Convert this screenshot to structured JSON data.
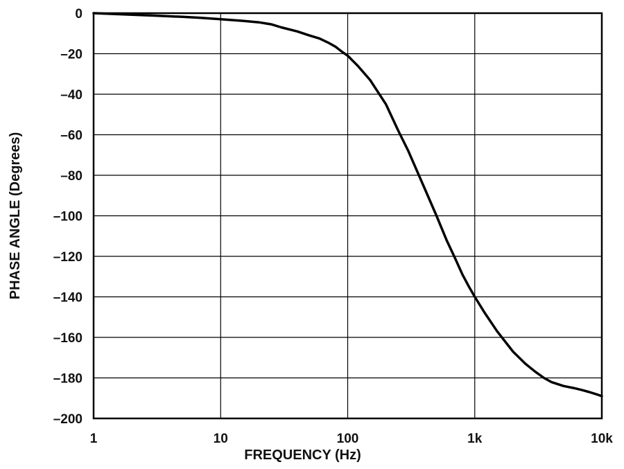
{
  "chart_data": {
    "type": "line",
    "title": "",
    "xlabel": "FREQUENCY (Hz)",
    "ylabel": "PHASE ANGLE (Degrees)",
    "x_scale": "log",
    "xlim": [
      1,
      10000
    ],
    "ylim": [
      -200,
      0
    ],
    "grid": true,
    "legend": "none",
    "x_ticks": [
      {
        "value": 1,
        "label": "1"
      },
      {
        "value": 10,
        "label": "10"
      },
      {
        "value": 100,
        "label": "100"
      },
      {
        "value": 1000,
        "label": "1k"
      },
      {
        "value": 10000,
        "label": "10k"
      }
    ],
    "y_ticks": [
      {
        "value": 0,
        "label": "0"
      },
      {
        "value": -20,
        "label": "–20"
      },
      {
        "value": -40,
        "label": "–40"
      },
      {
        "value": -60,
        "label": "–60"
      },
      {
        "value": -80,
        "label": "–80"
      },
      {
        "value": -100,
        "label": "–100"
      },
      {
        "value": -120,
        "label": "–120"
      },
      {
        "value": -140,
        "label": "–140"
      },
      {
        "value": -160,
        "label": "–160"
      },
      {
        "value": -180,
        "label": "–180"
      },
      {
        "value": -200,
        "label": "–200"
      }
    ],
    "series": [
      {
        "color": "#000000",
        "x": [
          1,
          2,
          3,
          5,
          7,
          10,
          15,
          20,
          25,
          30,
          40,
          50,
          60,
          70,
          80,
          90,
          100,
          120,
          150,
          200,
          250,
          300,
          400,
          500,
          600,
          700,
          800,
          900,
          1000,
          1200,
          1500,
          2000,
          2500,
          3000,
          3500,
          4000,
          5000,
          6000,
          7000,
          8000,
          9000,
          10000
        ],
        "y": [
          0,
          -0.8,
          -1.2,
          -1.8,
          -2.3,
          -3,
          -3.8,
          -4.5,
          -5.5,
          -7,
          -9,
          -11,
          -12.5,
          -14.5,
          -16.5,
          -19,
          -21,
          -26,
          -33,
          -45,
          -58,
          -68,
          -86,
          -100,
          -112,
          -121,
          -129,
          -135,
          -140,
          -148,
          -157,
          -167,
          -173,
          -177,
          -180,
          -182,
          -184,
          -185,
          -186,
          -187,
          -188,
          -189
        ]
      }
    ]
  }
}
